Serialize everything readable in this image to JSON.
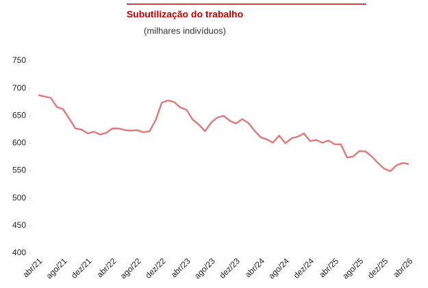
{
  "chart_data": {
    "type": "line",
    "title": "Subutilização do trabalho",
    "subtitle": "(milhares indivíduos)",
    "categories": [
      "abr/21",
      null,
      null,
      null,
      "ago/21",
      null,
      null,
      null,
      "dez/21",
      null,
      null,
      null,
      "abr/22",
      null,
      null,
      null,
      "ago/22",
      null,
      null,
      null,
      "dez/22",
      null,
      null,
      null,
      "abr/23",
      null,
      null,
      null,
      "ago/23",
      null,
      null,
      null,
      "dez/23",
      null,
      null,
      null,
      "abr/24",
      null,
      null,
      null,
      "ago/24",
      null,
      null,
      null,
      "dez/24",
      null,
      null,
      null,
      "abr/25",
      null,
      null,
      null,
      "ago/25",
      null,
      null,
      null,
      "dez/25",
      null,
      null,
      null,
      "abr/26"
    ],
    "series": [
      {
        "color": "#e07b7b",
        "values": [
          688,
          685,
          683,
          666,
          662,
          645,
          627,
          625,
          618,
          621,
          616,
          619,
          627,
          627,
          624,
          623,
          624,
          620,
          622,
          642,
          674,
          678,
          675,
          665,
          661,
          643,
          634,
          622,
          638,
          647,
          650,
          641,
          636,
          644,
          637,
          623,
          611,
          607,
          601,
          614,
          600,
          609,
          612,
          618,
          604,
          606,
          601,
          605,
          598,
          598,
          574,
          576,
          586,
          585,
          576,
          564,
          554,
          549,
          560,
          564,
          562
        ]
      }
    ],
    "ylim": [
      400,
      750
    ],
    "yticks": [
      400,
      450,
      500,
      550,
      600,
      650,
      700,
      750
    ]
  }
}
